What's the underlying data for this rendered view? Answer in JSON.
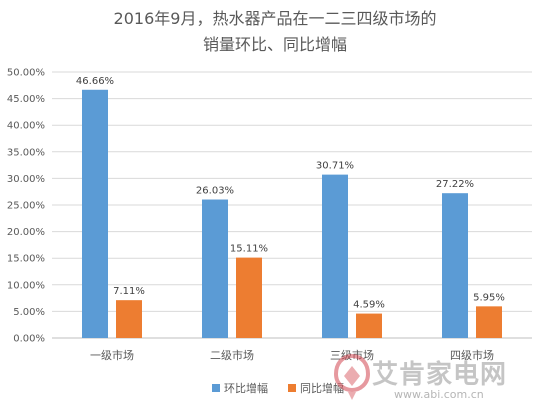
{
  "chart_data": {
    "type": "bar",
    "title_lines": [
      "2016年9月，热水器产品在一二三四级市场的",
      "销量环比、同比增幅"
    ],
    "categories": [
      "一级市场",
      "二级市场",
      "三级市场",
      "四级市场"
    ],
    "series": [
      {
        "name": "环比增幅",
        "values": [
          46.66,
          26.03,
          30.71,
          27.22
        ],
        "labels": [
          "46.66%",
          "26.03%",
          "30.71%",
          "27.22%"
        ],
        "color": "#5b9bd5"
      },
      {
        "name": "同比增幅",
        "values": [
          7.11,
          15.11,
          4.59,
          5.95
        ],
        "labels": [
          "7.11%",
          "15.11%",
          "4.59%",
          "5.95%"
        ],
        "color": "#ed7d31"
      }
    ],
    "ylim": [
      0,
      50
    ],
    "yticks": [
      0,
      5,
      10,
      15,
      20,
      25,
      30,
      35,
      40,
      45,
      50
    ],
    "ytick_labels": [
      "0.00%",
      "5.00%",
      "10.00%",
      "15.00%",
      "20.00%",
      "25.00%",
      "30.00%",
      "35.00%",
      "40.00%",
      "45.00%",
      "50.00%"
    ],
    "grid": true,
    "legend_position": "bottom"
  },
  "watermark": {
    "brand": "艾肯家电网",
    "url": "www.abi.com.cn"
  }
}
